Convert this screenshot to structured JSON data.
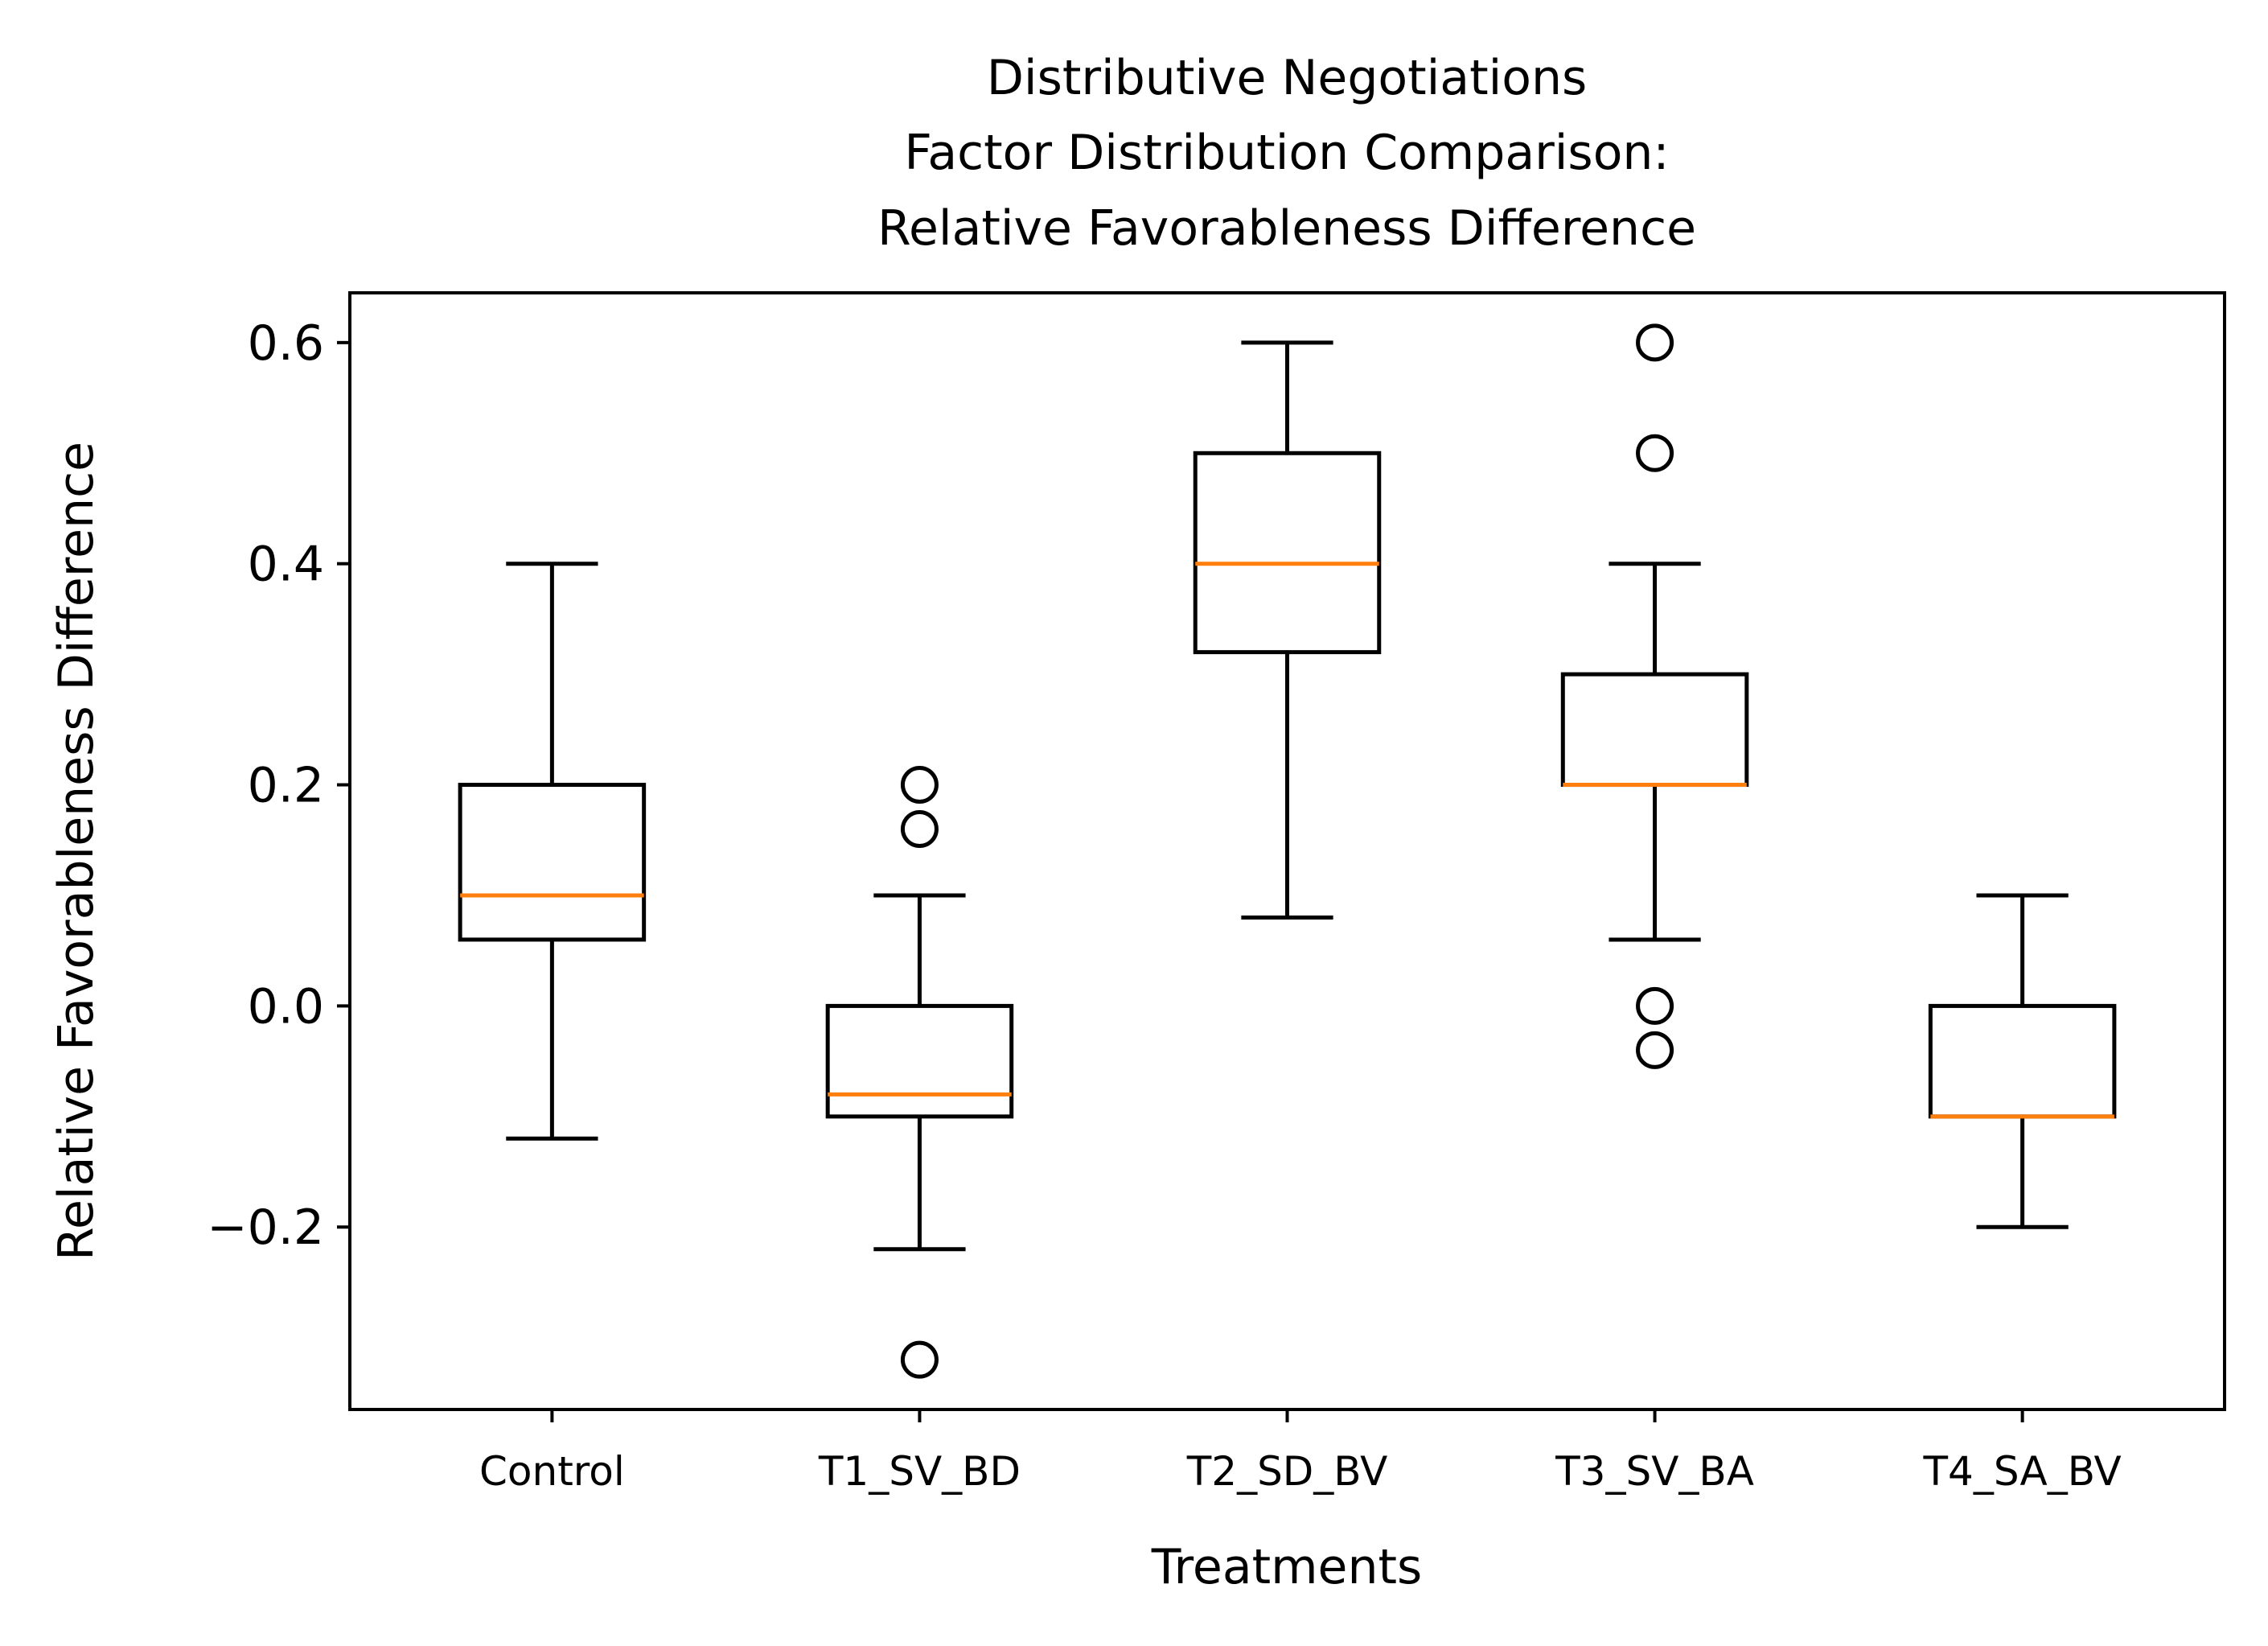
{
  "chart_data": {
    "type": "boxplot",
    "title_lines": [
      "Distributive Negotiations",
      "Factor Distribution Comparison:",
      "Relative Favorableness Difference"
    ],
    "xlabel": "Treatments",
    "ylabel": "Relative Favorableness Difference",
    "ylim": [
      -0.365,
      0.645
    ],
    "yticks": [
      -0.2,
      0.0,
      0.2,
      0.4,
      0.6
    ],
    "ytick_labels": [
      "−0.2",
      "0.0",
      "0.2",
      "0.4",
      "0.6"
    ],
    "categories": [
      "Control",
      "T1_SV_BD",
      "T2_SD_BV",
      "T3_SV_BA",
      "T4_SA_BV"
    ],
    "boxes": [
      {
        "category": "Control",
        "whisker_low": -0.12,
        "q1": 0.06,
        "median": 0.1,
        "q3": 0.2,
        "whisker_high": 0.4,
        "outliers": []
      },
      {
        "category": "T1_SV_BD",
        "whisker_low": -0.22,
        "q1": -0.1,
        "median": -0.08,
        "q3": 0.0,
        "whisker_high": 0.1,
        "outliers": [
          0.2,
          0.16,
          -0.32
        ]
      },
      {
        "category": "T2_SD_BV",
        "whisker_low": 0.08,
        "q1": 0.32,
        "median": 0.4,
        "q3": 0.5,
        "whisker_high": 0.6,
        "outliers": []
      },
      {
        "category": "T3_SV_BA",
        "whisker_low": 0.06,
        "q1": 0.2,
        "median": 0.2,
        "q3": 0.3,
        "whisker_high": 0.4,
        "outliers": [
          0.6,
          0.5,
          0.0,
          -0.04
        ]
      },
      {
        "category": "T4_SA_BV",
        "whisker_low": -0.2,
        "q1": -0.1,
        "median": -0.1,
        "q3": 0.0,
        "whisker_high": 0.1,
        "outliers": []
      }
    ],
    "grid": false,
    "legend": "none"
  },
  "colors": {
    "box": "#000000",
    "median": "#ff7f0e",
    "background": "#ffffff"
  }
}
